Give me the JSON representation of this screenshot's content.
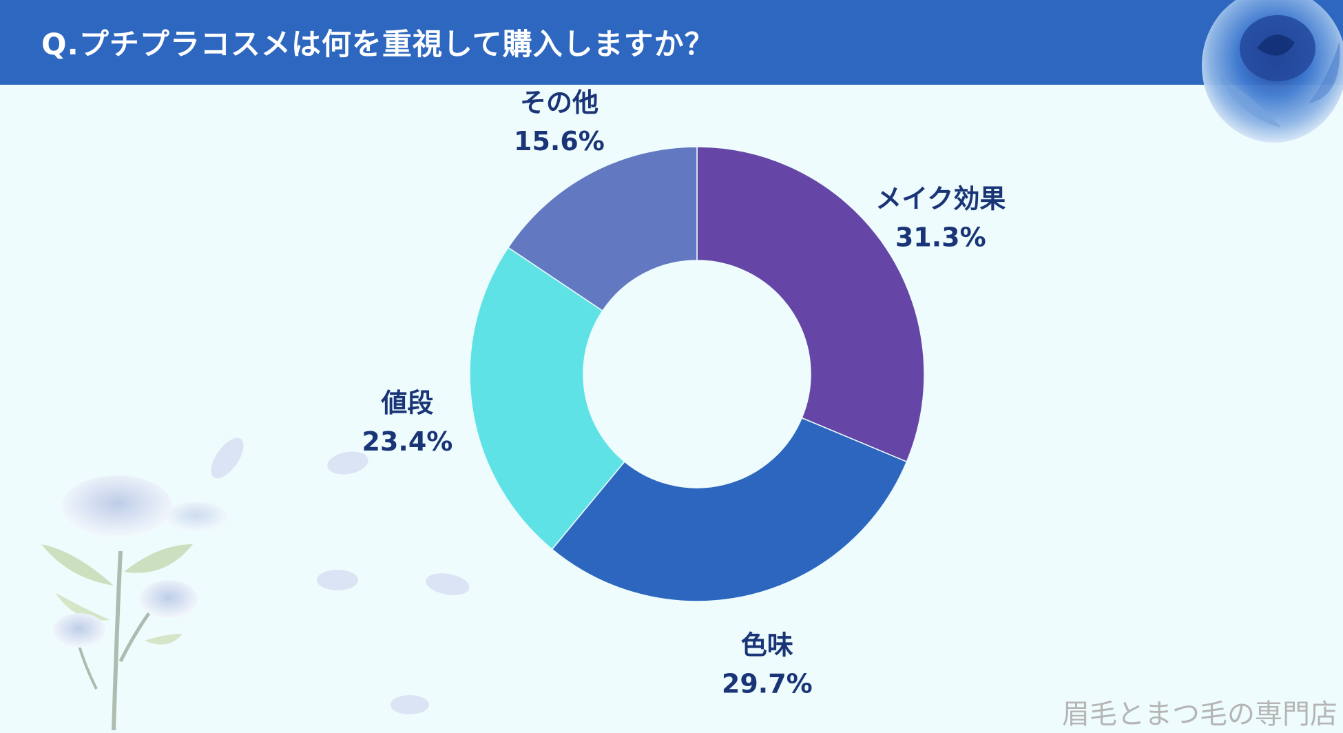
{
  "header": {
    "title": "Q.プチプラコスメは何を重視して購入しますか？"
  },
  "colors": {
    "header_bg": "#2d67bf",
    "background": "#eefcfd",
    "label_text": "#1a3577"
  },
  "chart_data": {
    "type": "pie",
    "title": "",
    "donut": true,
    "start": "12 o'clock, clockwise",
    "slices": [
      {
        "label": "メイク効果",
        "value": 31.3,
        "display": "31.3%",
        "color": "#6546a6"
      },
      {
        "label": "色味",
        "value": 29.7,
        "display": "29.7%",
        "color": "#2d66bf"
      },
      {
        "label": "値段",
        "value": 23.4,
        "display": "23.4%",
        "color": "#5ee2e6"
      },
      {
        "label": "その他",
        "value": 15.6,
        "display": "15.6%",
        "color": "#6278c1"
      }
    ]
  },
  "footer": {
    "brand": "眉毛とまつ毛の専門店"
  }
}
